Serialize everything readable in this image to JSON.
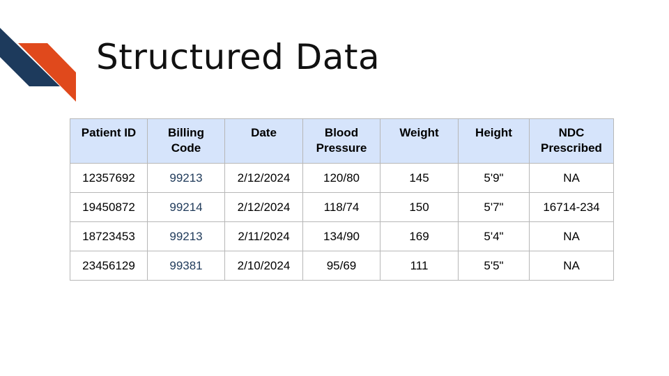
{
  "slide": {
    "title": "Structured Data",
    "accent_colors": {
      "navy": "#1d3a5c",
      "orange": "#e0491c"
    },
    "header_fill": "#d6e4fb"
  },
  "table": {
    "headers": [
      "Patient ID",
      "Billing Code",
      "Date",
      "Blood Pressure",
      "Weight",
      "Height",
      "NDC Prescribed"
    ],
    "header_lines": [
      [
        "Patient ID"
      ],
      [
        "Billing",
        "Code"
      ],
      [
        "Date"
      ],
      [
        "Blood",
        "Pressure"
      ],
      [
        "Weight"
      ],
      [
        "Height"
      ],
      [
        "NDC",
        "Prescribed"
      ]
    ],
    "rows": [
      [
        "12357692",
        "99213",
        "2/12/2024",
        "120/80",
        "145",
        "5'9\"",
        "NA"
      ],
      [
        "19450872",
        "99214",
        "2/12/2024",
        "118/74",
        "150",
        "5'7\"",
        "16714-234"
      ],
      [
        "18723453",
        "99213",
        "2/11/2024",
        "134/90",
        "169",
        "5'4\"",
        "NA"
      ],
      [
        "23456129",
        "99381",
        "2/10/2024",
        "95/69",
        "111",
        "5'5\"",
        "NA"
      ]
    ]
  }
}
